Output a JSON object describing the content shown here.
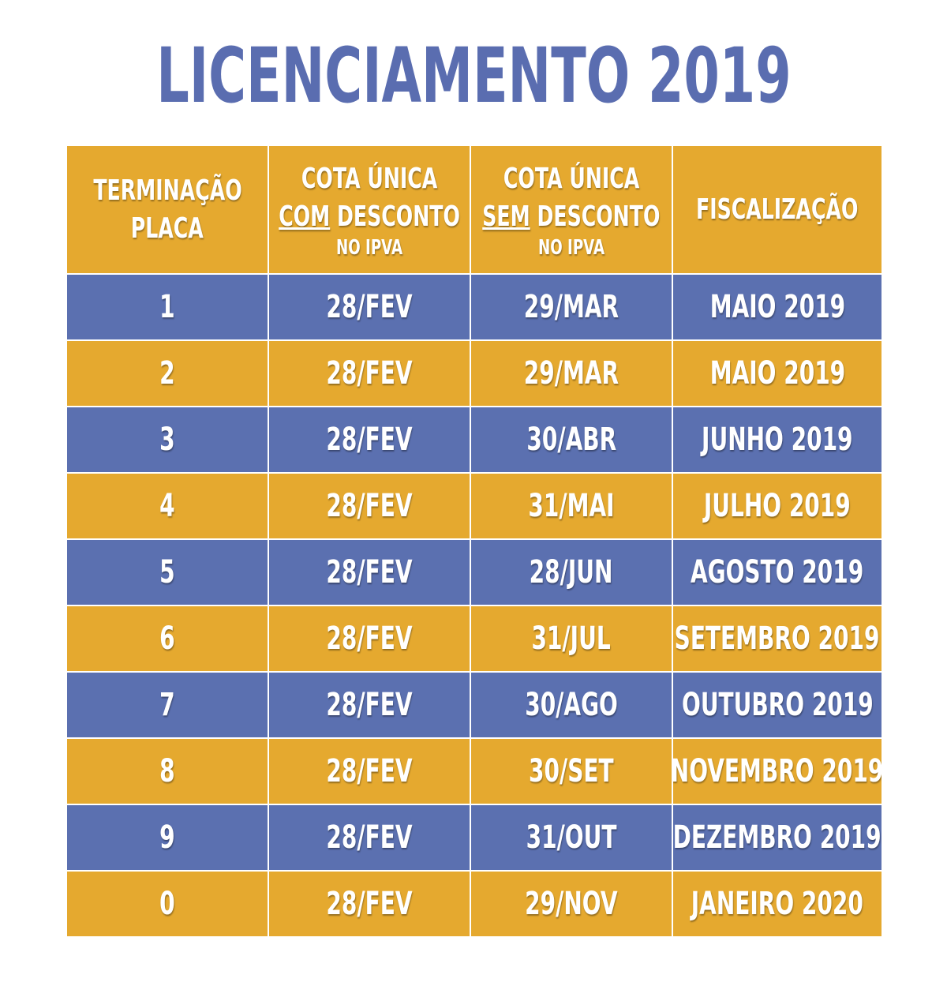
{
  "title": "LICENCIAMENTO 2019",
  "table": {
    "header": [
      [
        "TERMINAÇÃO",
        "PLACA"
      ],
      [
        "COTA ÚNICA",
        "COM",
        "DESCONTO",
        "NO IPVA"
      ],
      [
        "COTA ÚNICA",
        "SEM",
        "DESCONTO",
        "NO IPVA"
      ],
      [
        "FISCALIZAÇÃO"
      ]
    ],
    "rows": [
      [
        "1",
        "28/FEV",
        "29/MAR",
        "MAIO 2019"
      ],
      [
        "2",
        "28/FEV",
        "29/MAR",
        "MAIO 2019"
      ],
      [
        "3",
        "28/FEV",
        "30/ABR",
        "JUNHO 2019"
      ],
      [
        "4",
        "28/FEV",
        "31/MAI",
        "JULHO 2019"
      ],
      [
        "5",
        "28/FEV",
        "28/JUN",
        "AGOSTO 2019"
      ],
      [
        "6",
        "28/FEV",
        "31/JUL",
        "SETEMBRO 2019"
      ],
      [
        "7",
        "28/FEV",
        "30/AGO",
        "OUTUBRO 2019"
      ],
      [
        "8",
        "28/FEV",
        "30/SET",
        "NOVEMBRO 2019"
      ],
      [
        "9",
        "28/FEV",
        "31/OUT",
        "DEZEMBRO 2019"
      ],
      [
        "0",
        "28/FEV",
        "29/NOV",
        "JANEIRO 2020"
      ]
    ]
  }
}
